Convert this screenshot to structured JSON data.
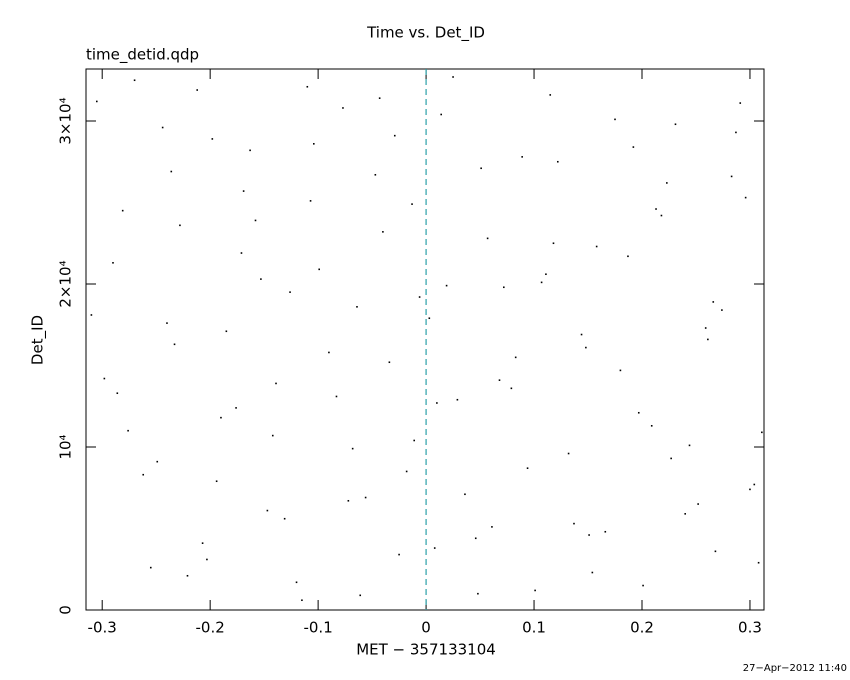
{
  "chart_data": {
    "type": "scatter",
    "title": "Time vs. Det_ID",
    "subtitle": "time_detid.qdp",
    "xlabel": "MET − 357133104",
    "ylabel": "Det_ID",
    "timestamp": "27−Apr−2012 11:40",
    "color": "#000000",
    "xlim": [
      -0.315,
      0.313
    ],
    "ylim": [
      0,
      33190
    ],
    "xticks": [
      -0.3,
      -0.2,
      -0.1,
      0,
      0.1,
      0.2,
      0.3
    ],
    "yticks": [
      0,
      {
        "value": 10000,
        "label": "10⁴"
      },
      {
        "value": 20000,
        "label": "2×10⁴"
      },
      {
        "value": 30000,
        "label": "3×10⁴"
      }
    ],
    "vline": {
      "x": 0,
      "color": "#2aa0a8"
    },
    "x": [
      -0.305,
      -0.281,
      -0.262,
      -0.24,
      -0.221,
      -0.198,
      -0.176,
      -0.153,
      -0.131,
      -0.11,
      -0.09,
      -0.068,
      -0.047,
      -0.025,
      -0.006,
      0.014,
      0.036,
      0.057,
      0.079,
      0.101,
      0.122,
      0.144,
      0.166,
      0.187,
      0.209,
      0.231,
      0.252,
      0.274,
      0.296,
      0.308,
      -0.298,
      -0.27,
      -0.249,
      -0.228,
      -0.207,
      -0.185,
      -0.163,
      -0.142,
      -0.12,
      -0.099,
      -0.077,
      -0.056,
      -0.034,
      -0.013,
      0.008,
      0.029,
      0.051,
      0.072,
      0.094,
      0.115,
      0.137,
      0.158,
      0.18,
      0.201,
      0.223,
      0.244,
      0.266,
      0.287,
      0.304,
      -0.29,
      -0.255,
      -0.233,
      -0.212,
      -0.19,
      -0.169,
      -0.147,
      -0.126,
      -0.104,
      -0.083,
      -0.061,
      -0.04,
      -0.018,
      0.003,
      0.025,
      0.046,
      0.068,
      0.089,
      0.111,
      0.132,
      0.154,
      0.175,
      0.197,
      0.218,
      0.24,
      0.261,
      0.283,
      0.3,
      -0.31,
      -0.276,
      -0.244,
      -0.203,
      -0.171,
      -0.139,
      -0.107,
      -0.072,
      -0.043,
      -0.011,
      0.019,
      0.048,
      0.083,
      0.118,
      0.151,
      0.192,
      0.227,
      0.259,
      0.291,
      -0.286,
      -0.236,
      -0.194,
      -0.158,
      -0.115,
      -0.064,
      -0.029,
      0.01,
      0.061,
      0.107,
      0.148,
      0.213,
      0.268,
      0.311
    ],
    "values": [
      31200,
      24500,
      8300,
      17600,
      2100,
      28900,
      12400,
      20300,
      5600,
      32100,
      15800,
      9900,
      26700,
      3400,
      19200,
      30400,
      7100,
      22800,
      13600,
      1200,
      27500,
      16900,
      4800,
      21700,
      11300,
      29800,
      6500,
      18400,
      25300,
      2900,
      14200,
      32500,
      9100,
      23600,
      4100,
      17100,
      28200,
      10700,
      1700,
      20900,
      30800,
      6900,
      15200,
      24900,
      3800,
      12900,
      27100,
      19800,
      8700,
      31600,
      5300,
      22300,
      14700,
      1500,
      26200,
      10100,
      18900,
      29300,
      7700,
      21300,
      2600,
      16300,
      31900,
      11800,
      25700,
      6100,
      19500,
      28600,
      13100,
      900,
      23200,
      8500,
      17900,
      32700,
      4400,
      14100,
      27800,
      20600,
      9600,
      2300,
      30100,
      12100,
      24200,
      5900,
      16600,
      26600,
      7400,
      18100,
      11000,
      29600,
      3100,
      21900,
      13900,
      25100,
      6700,
      31400,
      10400,
      19900,
      1000,
      15500,
      22500,
      4600,
      28400,
      9300,
      17300,
      31100,
      13300,
      26900,
      7900,
      23900,
      600,
      18600,
      29100,
      12700,
      5100,
      20100,
      16100,
      24600,
      3600,
      10900
    ]
  }
}
